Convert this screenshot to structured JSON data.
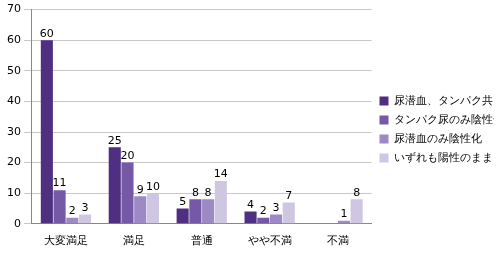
{
  "chart_data": {
    "type": "bar",
    "categories": [
      "大変満足",
      "満足",
      "普通",
      "やや不満",
      "不満"
    ],
    "series": [
      {
        "name": "尿潜血、タンパク共に陰性",
        "color": "#4e2f82",
        "values": [
          60,
          25,
          5,
          4,
          null
        ]
      },
      {
        "name": "タンパク尿のみ陰性化",
        "color": "#7558a6",
        "values": [
          11,
          20,
          8,
          2,
          null
        ]
      },
      {
        "name": "尿潜血のみ陰性化",
        "color": "#9d89c3",
        "values": [
          2,
          9,
          8,
          3,
          1
        ]
      },
      {
        "name": "いずれも陽性のまま",
        "color": "#cfc7e1",
        "values": [
          3,
          10,
          14,
          7,
          8
        ]
      }
    ],
    "ylim": [
      0,
      70
    ],
    "yticks": [
      0,
      10,
      20,
      30,
      40,
      50,
      60,
      70
    ],
    "grid": true,
    "legend": "right",
    "data_labels": true
  }
}
